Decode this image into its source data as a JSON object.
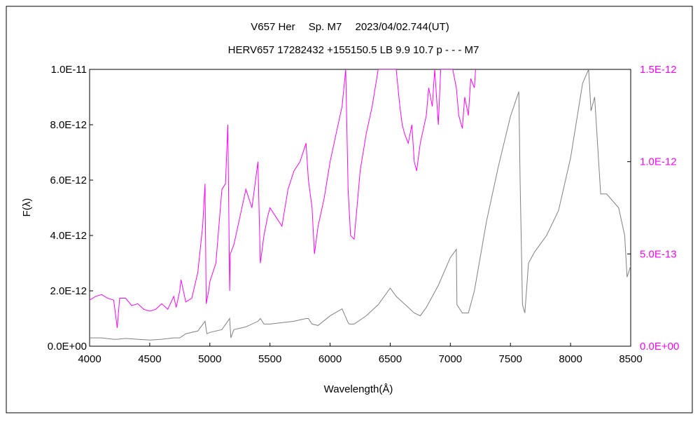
{
  "chart_data": {
    "type": "line",
    "title": "V657 Her　 Sp. M7　 2023/04/02.744(UT)",
    "subtitle": "HERV657 17282432 +155150.5 LB 9.9 10.7 p - - - M7",
    "xlabel": "Wavelength(Å)",
    "ylabel": "F(λ)",
    "xlim": [
      4000,
      8500
    ],
    "ylim_left": [
      0,
      1e-11
    ],
    "ylim_right": [
      0,
      1.5e-12
    ],
    "x_ticks": [
      "4000",
      "4500",
      "5000",
      "5500",
      "6000",
      "6500",
      "7000",
      "7500",
      "8000",
      "8500"
    ],
    "y_left_ticks": [
      "0.0E+00",
      "2.0E-12",
      "4.0E-12",
      "6.0E-12",
      "8.0E-12",
      "1.0E-11"
    ],
    "y_right_ticks": [
      "0.0E+00",
      "5.0E-13",
      "1.0E-12",
      "1.5E-12"
    ],
    "grid": false,
    "colors": {
      "left_series": "#808080",
      "right_series": "#ff00ff",
      "right_axis_text": "#ff00ff"
    },
    "series": [
      {
        "axis": "left",
        "x": [
          4000,
          4100,
          4200,
          4230,
          4300,
          4400,
          4500,
          4600,
          4700,
          4750,
          4800,
          4900,
          4960,
          4975,
          5000,
          5100,
          5165,
          5175,
          5200,
          5300,
          5400,
          5420,
          5450,
          5500,
          5600,
          5700,
          5800,
          5820,
          5850,
          5900,
          6000,
          6100,
          6150,
          6160,
          6200,
          6300,
          6400,
          6500,
          6550,
          6600,
          6700,
          6750,
          6800,
          6900,
          7000,
          7050,
          7055,
          7100,
          7150,
          7200,
          7300,
          7400,
          7500,
          7570,
          7580,
          7600,
          7620,
          7650,
          7700,
          7800,
          7900,
          8000,
          8100,
          8150,
          8170,
          8200,
          8250,
          8300,
          8400,
          8450,
          8470,
          8500
        ],
        "y": [
          3e-13,
          3e-13,
          2.5e-13,
          2.5e-13,
          2.8e-13,
          2.5e-13,
          2.2e-13,
          2.5e-13,
          3e-13,
          3e-13,
          4.5e-13,
          5.5e-13,
          9e-13,
          4.5e-13,
          5e-13,
          6e-13,
          1e-12,
          3e-13,
          6e-13,
          7e-13,
          9e-13,
          1e-12,
          8e-13,
          8e-13,
          8.5e-13,
          9e-13,
          1e-12,
          1e-12,
          8e-13,
          7.5e-13,
          1.1e-12,
          1.35e-12,
          8.5e-13,
          8e-13,
          8e-13,
          1.1e-12,
          1.5e-12,
          2.1e-12,
          1.8e-12,
          1.6e-12,
          1.2e-12,
          1.1e-12,
          1.4e-12,
          2.2e-12,
          3.2e-12,
          3.5e-12,
          1.5e-12,
          1.2e-12,
          1.2e-12,
          2e-12,
          4.5e-12,
          6.5e-12,
          8.3e-12,
          9.2e-12,
          6e-12,
          1.5e-12,
          1.2e-12,
          3e-12,
          3.4e-12,
          4e-12,
          4.9e-12,
          6.8e-12,
          9.5e-12,
          1e-11,
          8.5e-12,
          9e-12,
          5.5e-12,
          5.5e-12,
          5e-12,
          4e-12,
          2.5e-12,
          2.9e-12
        ]
      },
      {
        "axis": "right",
        "x": [
          4000,
          4050,
          4100,
          4150,
          4200,
          4230,
          4250,
          4300,
          4350,
          4400,
          4450,
          4500,
          4550,
          4600,
          4650,
          4700,
          4720,
          4750,
          4760,
          4800,
          4850,
          4900,
          4940,
          4960,
          4970,
          4990,
          5000,
          5050,
          5100,
          5130,
          5150,
          5165,
          5170,
          5200,
          5250,
          5300,
          5350,
          5400,
          5420,
          5450,
          5480,
          5500,
          5550,
          5600,
          5650,
          5700,
          5750,
          5800,
          5820,
          5850,
          5870,
          5900,
          5950,
          6000,
          6050,
          6100,
          6130,
          6150,
          6170,
          6200,
          6230,
          6250,
          6300,
          6350,
          6400,
          6420,
          6450,
          6500,
          6550,
          6580,
          6600,
          6620,
          6650,
          6680,
          6700,
          6720,
          6750,
          6800,
          6820,
          6850,
          6870,
          6900,
          6920,
          6950,
          6980,
          7000,
          7020,
          7050,
          7070,
          7100,
          7120,
          7150,
          7170,
          7200,
          7210
        ],
        "y": [
          2.5e-13,
          2.7e-13,
          2.8e-13,
          2.6e-13,
          2.5e-13,
          1e-13,
          2.6e-13,
          2.6e-13,
          2.2e-13,
          2.3e-13,
          2e-13,
          1.9e-13,
          2e-13,
          2.3e-13,
          2e-13,
          2.7e-13,
          2.1e-13,
          3e-13,
          3.6e-13,
          2.4e-13,
          2.6e-13,
          4e-13,
          6.5e-13,
          8.8e-13,
          2.3e-13,
          3e-13,
          3.5e-13,
          4.5e-13,
          8.5e-13,
          8.8e-13,
          1.2e-12,
          3e-13,
          5e-13,
          5.5e-13,
          7e-13,
          8.5e-13,
          7.5e-13,
          1e-12,
          4.5e-13,
          6e-13,
          7e-13,
          7.5e-13,
          7e-13,
          6.5e-13,
          8.5e-13,
          9.5e-13,
          1e-12,
          1.1e-12,
          9e-13,
          7.5e-13,
          5e-13,
          6.5e-13,
          8e-13,
          1e-12,
          1.15e-12,
          1.3e-12,
          1.5e-12,
          8.5e-13,
          6e-13,
          5.8e-13,
          8e-13,
          9.5e-13,
          1.15e-12,
          1.3e-12,
          1.5e-12,
          1.5e-12,
          1.5e-12,
          1.5e-12,
          1.5e-12,
          1.3e-12,
          1.2e-12,
          1.15e-12,
          1.1e-12,
          1.2e-12,
          1e-12,
          9.5e-13,
          1.1e-12,
          1.25e-12,
          1.4e-12,
          1.3e-12,
          1.5e-12,
          1.2e-12,
          1.5e-12,
          1.5e-12,
          1.5e-12,
          1.5e-12,
          1.5e-12,
          1.4e-12,
          1.25e-12,
          1.18e-12,
          1.35e-12,
          1.25e-12,
          1.45e-12,
          1.4e-12,
          1.5e-12
        ]
      }
    ]
  }
}
